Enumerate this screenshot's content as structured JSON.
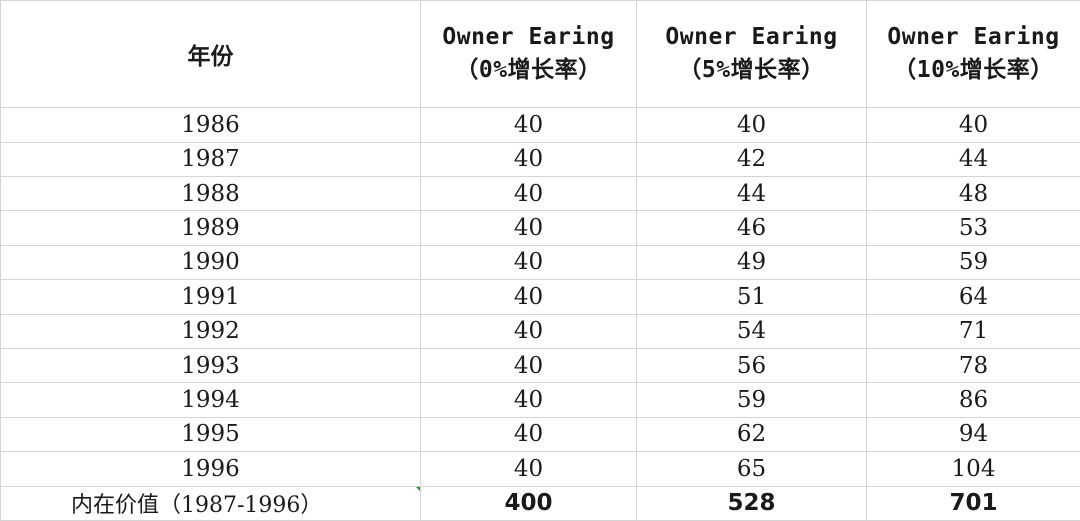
{
  "table": {
    "headers": {
      "year": "年份",
      "cols": [
        {
          "line1": "Owner Earing",
          "line2": "（0%增长率）"
        },
        {
          "line1": "Owner Earing",
          "line2": "（5%增长率）"
        },
        {
          "line1": "Owner Earing",
          "line2": "（10%增长率）"
        }
      ]
    },
    "rows": [
      {
        "year": "1986",
        "v0": "40",
        "v5": "40",
        "v10": "40"
      },
      {
        "year": "1987",
        "v0": "40",
        "v5": "42",
        "v10": "44"
      },
      {
        "year": "1988",
        "v0": "40",
        "v5": "44",
        "v10": "48"
      },
      {
        "year": "1989",
        "v0": "40",
        "v5": "46",
        "v10": "53"
      },
      {
        "year": "1990",
        "v0": "40",
        "v5": "49",
        "v10": "59"
      },
      {
        "year": "1991",
        "v0": "40",
        "v5": "51",
        "v10": "64"
      },
      {
        "year": "1992",
        "v0": "40",
        "v5": "54",
        "v10": "71"
      },
      {
        "year": "1993",
        "v0": "40",
        "v5": "56",
        "v10": "78"
      },
      {
        "year": "1994",
        "v0": "40",
        "v5": "59",
        "v10": "86"
      },
      {
        "year": "1995",
        "v0": "40",
        "v5": "62",
        "v10": "94"
      },
      {
        "year": "1996",
        "v0": "40",
        "v5": "65",
        "v10": "104"
      }
    ],
    "total": {
      "label": "内在价值（1987-1996）",
      "v0": "400",
      "v5": "528",
      "v10": "701"
    }
  },
  "colors": {
    "grid": "#d4d4d4",
    "marker": "#1e8a3a",
    "text": "#1a1a1a"
  }
}
